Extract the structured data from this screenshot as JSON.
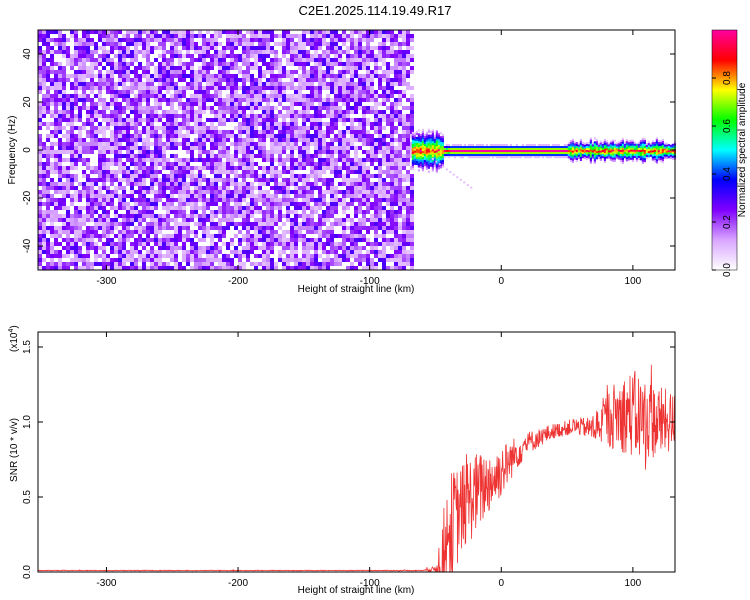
{
  "title": "C2E1.2025.114.19.49.R17",
  "chart_data": [
    {
      "type": "heatmap",
      "xlabel": "Height of straight line (km)",
      "ylabel": "Frequency (Hz)",
      "xlim": [
        -352,
        132
      ],
      "ylim": [
        -50,
        50
      ],
      "x_ticks": [
        -300,
        -200,
        -100,
        0,
        100
      ],
      "x_tick_labels": [
        "-300",
        "-200",
        "-100",
        "0",
        "100"
      ],
      "y_ticks": [
        -40,
        -20,
        0,
        20,
        40
      ],
      "y_tick_labels": [
        "-40",
        "-20",
        "0",
        "20",
        "40"
      ],
      "noise_region_x": [
        -352,
        -67
      ],
      "signal_ridge_x": [
        -68,
        132
      ],
      "signal_ridge_frequency": 0,
      "colorbar": {
        "label": "Normalized spectral amplitude",
        "range": [
          0,
          1
        ],
        "ticks": [
          0.0,
          0.2,
          0.4,
          0.6,
          0.8
        ],
        "tick_labels": [
          "0.0",
          "0.2",
          "0.4",
          "0.6",
          "0.8"
        ],
        "colors": [
          "#ffffff",
          "#d9a6ff",
          "#8000ff",
          "#0000ff",
          "#00ffff",
          "#00ff00",
          "#ffff00",
          "#ff0000",
          "#ff00a0"
        ]
      }
    },
    {
      "type": "line",
      "xlabel": "Height of straight line (km)",
      "ylabel": "SNR (10 * v/v)",
      "y_multiplier": "(x10",
      "y_multiplier_exp": "4",
      "y_multiplier_close": ")",
      "xlim": [
        -352,
        132
      ],
      "ylim": [
        0,
        1.6
      ],
      "x_ticks": [
        -300,
        -200,
        -100,
        0,
        100
      ],
      "x_tick_labels": [
        "-300",
        "-200",
        "-100",
        "0",
        "100"
      ],
      "y_ticks": [
        0.0,
        0.5,
        1.0,
        1.5
      ],
      "y_tick_labels": [
        "0.0",
        "0.5",
        "1.0",
        "1.5"
      ],
      "line_color": "#ee3333",
      "series": [
        {
          "x": [
            -352,
            -300,
            -200,
            -100,
            -60,
            -50,
            -45,
            -40,
            -35,
            -30,
            -25,
            -20,
            -15,
            -10,
            -5,
            0,
            5,
            10,
            15,
            20,
            25,
            30,
            35,
            40,
            45,
            50,
            55,
            60,
            65,
            70,
            75,
            80,
            85,
            90,
            95,
            100,
            105,
            110,
            115,
            120,
            125,
            132
          ],
          "values": [
            0.01,
            0.01,
            0.01,
            0.01,
            0.01,
            0.02,
            0.1,
            0.25,
            0.35,
            0.42,
            0.48,
            0.52,
            0.55,
            0.6,
            0.62,
            0.68,
            0.72,
            0.78,
            0.82,
            0.86,
            0.88,
            0.9,
            0.92,
            0.94,
            0.95,
            0.96,
            0.97,
            0.97,
            0.96,
            0.96,
            0.99,
            1.02,
            1.04,
            1.05,
            1.06,
            1.05,
            1.03,
            1.02,
            1.01,
            1.0,
            1.0,
            1.0
          ],
          "amplitude": [
            0.002,
            0.002,
            0.002,
            0.002,
            0.003,
            0.02,
            0.25,
            0.4,
            0.35,
            0.3,
            0.3,
            0.28,
            0.25,
            0.22,
            0.2,
            0.18,
            0.15,
            0.12,
            0.1,
            0.08,
            0.07,
            0.06,
            0.06,
            0.05,
            0.05,
            0.05,
            0.06,
            0.06,
            0.07,
            0.1,
            0.14,
            0.18,
            0.22,
            0.25,
            0.27,
            0.3,
            0.3,
            0.28,
            0.26,
            0.25,
            0.22,
            0.2
          ]
        }
      ]
    }
  ]
}
